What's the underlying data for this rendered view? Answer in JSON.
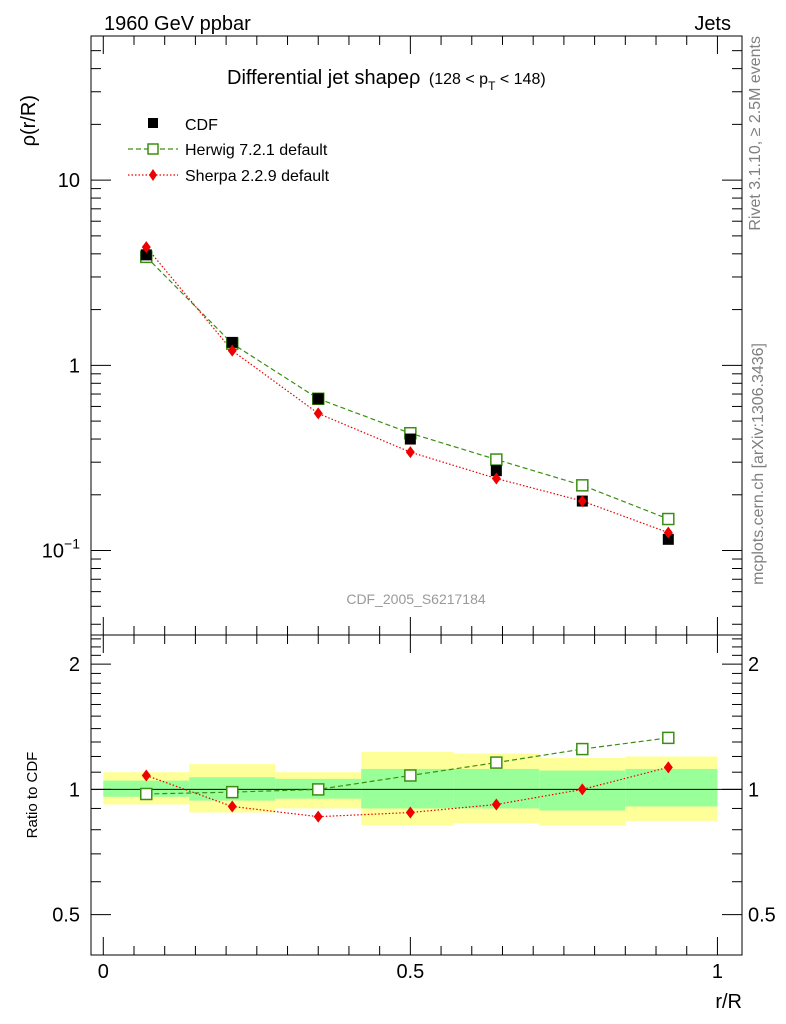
{
  "header": {
    "left": "1960 GeV ppbar",
    "right": "Jets"
  },
  "sidebar": {
    "top": "Rivet 3.1.10, ≥ 2.5M events",
    "bottom": "mcplots.cern.ch [arXiv:1306.3436]"
  },
  "plot_title": {
    "main": "Differential jet shapeρ",
    "sub_a": "(128 < p",
    "sub_sub": "T",
    "sub_b": " < 148)"
  },
  "watermark": "CDF_2005_S6217184",
  "legend": {
    "entries": [
      {
        "label": "CDF",
        "color": "#000000",
        "marker": "filled-square"
      },
      {
        "label": "Herwig 7.2.1 default",
        "color": "#3a8f12",
        "marker": "open-square"
      },
      {
        "label": "Sherpa 2.2.9 default",
        "color": "#ee0000",
        "marker": "filled-diamond"
      }
    ]
  },
  "main_ylabel": "ρ(r/R)",
  "ratio_ylabel": "Ratio to CDF",
  "xlabel": "r/R",
  "main_y_ticks": [
    {
      "value": 10,
      "label": "10",
      "sup": ""
    },
    {
      "value": 1,
      "label": "1",
      "sup": ""
    },
    {
      "value": 0.1,
      "label": "10",
      "sup": "−1"
    }
  ],
  "ratio_y_ticks": [
    {
      "value": 2,
      "label": "2"
    },
    {
      "value": 1,
      "label": "1"
    },
    {
      "value": 0.5,
      "label": "0.5"
    }
  ],
  "x_ticks": [
    {
      "value": 0,
      "label": "0"
    },
    {
      "value": 0.5,
      "label": "0.5"
    },
    {
      "value": 1,
      "label": "1"
    }
  ],
  "chart_data": {
    "type": "scatter",
    "x": [
      0.07,
      0.21,
      0.35,
      0.5,
      0.64,
      0.78,
      0.92
    ],
    "x_bins": [
      [
        0,
        0.14
      ],
      [
        0.14,
        0.28
      ],
      [
        0.28,
        0.42
      ],
      [
        0.42,
        0.57
      ],
      [
        0.57,
        0.71
      ],
      [
        0.71,
        0.85
      ],
      [
        0.85,
        1.0
      ]
    ],
    "xlim": [
      -0.02,
      1.04
    ],
    "main": {
      "yscale": "log",
      "ylim": [
        0.035,
        60
      ],
      "series": [
        {
          "name": "CDF",
          "values": [
            3.95,
            1.33,
            0.66,
            0.4,
            0.27,
            0.185,
            0.115
          ]
        },
        {
          "name": "Herwig 7.2.1 default",
          "values": [
            3.85,
            1.31,
            0.66,
            0.43,
            0.31,
            0.225,
            0.148
          ]
        },
        {
          "name": "Sherpa 2.2.9 default",
          "values": [
            4.35,
            1.2,
            0.55,
            0.34,
            0.245,
            0.185,
            0.125
          ]
        }
      ]
    },
    "ratio": {
      "yscale": "log",
      "ylim": [
        0.4,
        2.35
      ],
      "reference": 1,
      "band_inner": [
        [
          0.96,
          1.05
        ],
        [
          0.94,
          1.07
        ],
        [
          0.95,
          1.06
        ],
        [
          0.9,
          1.12
        ],
        [
          0.9,
          1.12
        ],
        [
          0.89,
          1.11
        ],
        [
          0.91,
          1.12
        ]
      ],
      "band_outer": [
        [
          0.92,
          1.1
        ],
        [
          0.88,
          1.15
        ],
        [
          0.9,
          1.1
        ],
        [
          0.82,
          1.23
        ],
        [
          0.83,
          1.22
        ],
        [
          0.82,
          1.19
        ],
        [
          0.84,
          1.2
        ]
      ],
      "series": [
        {
          "name": "Herwig 7.2.1 default",
          "values": [
            0.975,
            0.985,
            1.0,
            1.08,
            1.16,
            1.25,
            1.33
          ]
        },
        {
          "name": "Sherpa 2.2.9 default",
          "values": [
            1.08,
            0.91,
            0.86,
            0.88,
            0.92,
            1.0,
            1.13
          ]
        }
      ]
    }
  }
}
